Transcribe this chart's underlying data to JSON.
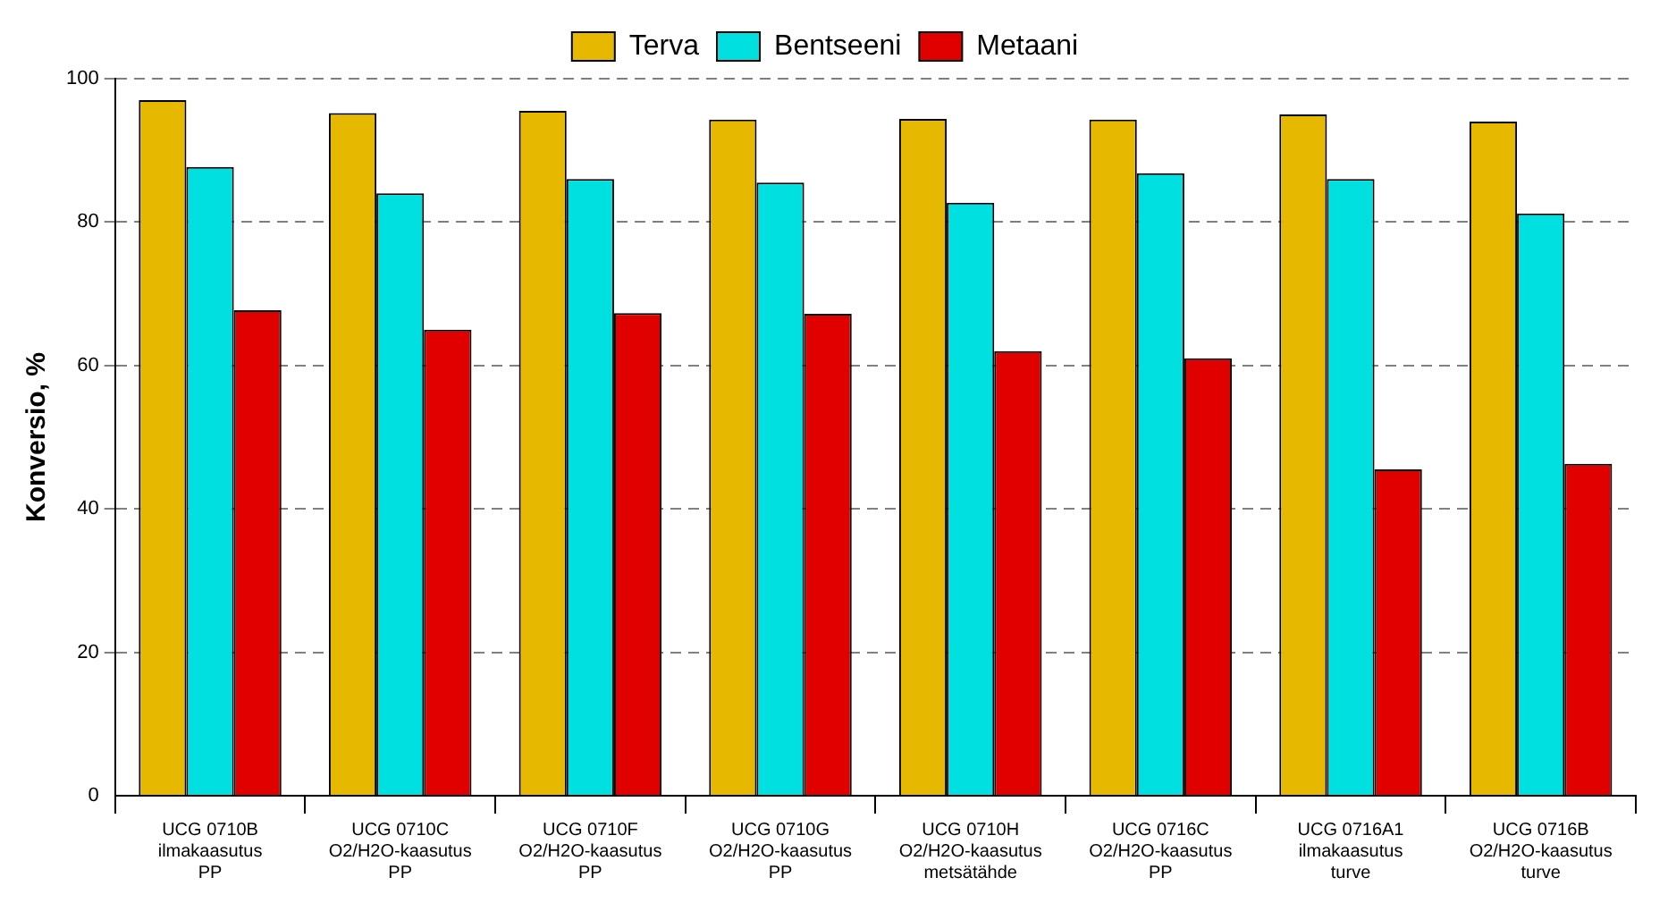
{
  "chart_data": {
    "type": "bar",
    "ylabel": "Konversio, %",
    "categories": [
      "UCG 0710B\nilmakaasutus\nPP",
      "UCG 0710C\nO2/H2O-kaasutus\nPP",
      "UCG 0710F\nO2/H2O-kaasutus\nPP",
      "UCG 0710G\nO2/H2O-kaasutus\nPP",
      "UCG 0710H\nO2/H2O-kaasutus\nmetsätähde",
      "UCG 0716C\nO2/H2O-kaasutus\nPP",
      "UCG 0716A1\nilmakaasutus\nturve",
      "UCG 0716B\nO2/H2O-kaasutus\nturve"
    ],
    "series": [
      {
        "name": "Terva",
        "color": "#e6b800",
        "values": [
          97,
          95.2,
          95.5,
          94.3,
          94.4,
          94.3,
          95,
          94
        ]
      },
      {
        "name": "Bentseeni",
        "color": "#00e0e0",
        "values": [
          87.7,
          84,
          86,
          85.5,
          82.7,
          86.8,
          86,
          81.2
        ]
      },
      {
        "name": "Metaani",
        "color": "#e00000",
        "values": [
          67.7,
          65,
          67.3,
          67.2,
          62,
          61,
          45.5,
          46.3
        ]
      }
    ],
    "ylim": [
      0,
      100
    ],
    "yticks": [
      0,
      20,
      40,
      60,
      80,
      100
    ],
    "grid": "y",
    "legend": "top"
  }
}
